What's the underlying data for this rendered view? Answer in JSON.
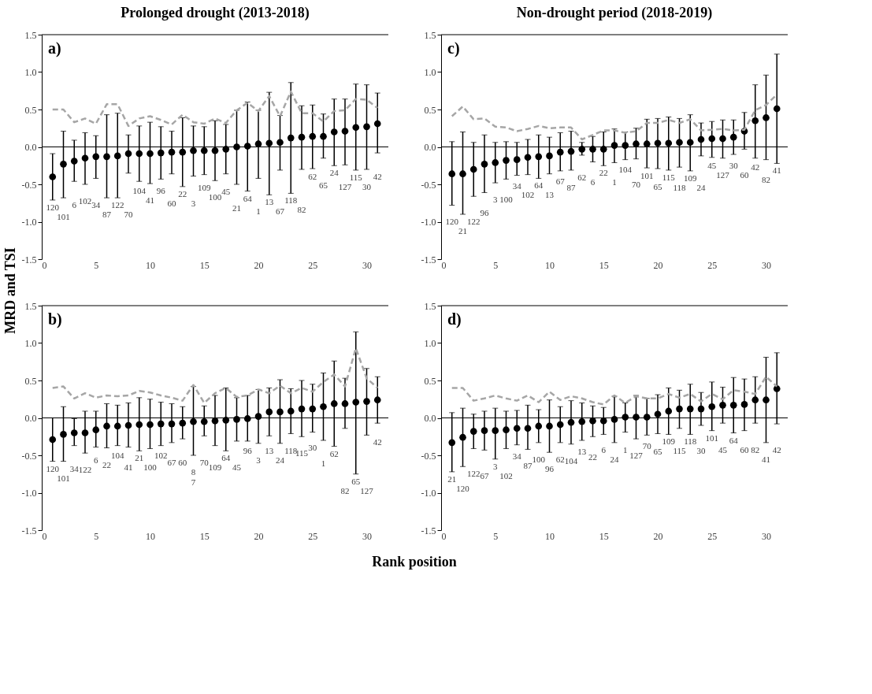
{
  "chart_data": [
    {
      "type": "scatter",
      "title": "Prolonged drought (2013-2018)",
      "ylabel": "MRD and TSI",
      "xlim": [
        0,
        32
      ],
      "xticks": [
        0,
        5,
        10,
        15,
        20,
        25,
        30
      ],
      "ylim": [
        -1.5,
        1.5
      ],
      "yticks": [
        {
          "value": -1.5,
          "label": "-1.5"
        },
        {
          "value": -1,
          "label": "-1.0"
        },
        {
          "value": -0.5,
          "label": "-0.5"
        },
        {
          "value": 0,
          "label": "0.0"
        },
        {
          "value": 0.5,
          "label": "0.5"
        },
        {
          "value": 1,
          "label": "1.0"
        },
        {
          "value": 1.5,
          "label": "1.5"
        }
      ],
      "grid": false,
      "x": [
        1,
        2,
        3,
        4,
        5,
        6,
        7,
        8,
        9,
        10,
        11,
        12,
        13,
        14,
        15,
        16,
        17,
        18,
        19,
        20,
        21,
        22,
        23,
        24,
        25,
        26,
        27,
        28,
        29,
        30,
        31
      ],
      "series": [
        {
          "color": "#000000",
          "marker": "circle",
          "values": [
            -0.4,
            -0.23,
            -0.19,
            -0.15,
            -0.13,
            -0.13,
            -0.12,
            -0.09,
            -0.09,
            -0.09,
            -0.08,
            -0.07,
            -0.07,
            -0.05,
            -0.05,
            -0.05,
            -0.03,
            0.0,
            0.01,
            0.04,
            0.05,
            0.06,
            0.12,
            0.13,
            0.14,
            0.14,
            0.2,
            0.21,
            0.26,
            0.27,
            0.31
          ],
          "errors": [
            [
              -0.71,
              -0.09
            ],
            [
              -0.68,
              0.21
            ],
            [
              -0.46,
              0.09
            ],
            [
              -0.5,
              0.19
            ],
            [
              -0.42,
              0.15
            ],
            [
              -0.68,
              0.43
            ],
            [
              -0.68,
              0.45
            ],
            [
              -0.35,
              0.16
            ],
            [
              -0.46,
              0.28
            ],
            [
              -0.49,
              0.33
            ],
            [
              -0.43,
              0.27
            ],
            [
              -0.36,
              0.21
            ],
            [
              -0.53,
              0.39
            ],
            [
              -0.39,
              0.28
            ],
            [
              -0.37,
              0.27
            ],
            [
              -0.45,
              0.35
            ],
            [
              -0.36,
              0.3
            ],
            [
              -0.5,
              0.49
            ],
            [
              -0.59,
              0.6
            ],
            [
              -0.42,
              0.49
            ],
            [
              -0.64,
              0.73
            ],
            [
              -0.31,
              0.42
            ],
            [
              -0.62,
              0.86
            ],
            [
              -0.3,
              0.55
            ],
            [
              -0.29,
              0.56
            ],
            [
              -0.15,
              0.44
            ],
            [
              -0.25,
              0.64
            ],
            [
              -0.24,
              0.64
            ],
            [
              -0.31,
              0.84
            ],
            [
              -0.3,
              0.83
            ],
            [
              -0.08,
              0.72
            ]
          ]
        },
        {
          "type": "line",
          "color": "#a6a6a6",
          "line_style": "dashed",
          "marker": "none",
          "values": [
            0.5,
            0.5,
            0.33,
            0.38,
            0.31,
            0.57,
            0.57,
            0.28,
            0.38,
            0.41,
            0.36,
            0.3,
            0.43,
            0.33,
            0.31,
            0.38,
            0.32,
            0.49,
            0.59,
            0.48,
            0.68,
            0.41,
            0.74,
            0.45,
            0.45,
            0.34,
            0.48,
            0.49,
            0.64,
            0.63,
            0.52
          ]
        }
      ],
      "ref_lines": [
        {
          "axis": "y",
          "value": 0,
          "color": "#000000"
        }
      ],
      "annotations": [
        "a)",
        "120",
        "101",
        "6",
        "102",
        "34",
        "87",
        "122",
        "70",
        "104",
        "41",
        "96",
        "60",
        "22",
        "3",
        "109",
        "100",
        "45",
        "21",
        "64",
        "1",
        "13",
        "67",
        "118",
        "82",
        "62",
        "65",
        "24",
        "127",
        "115",
        "30",
        "42"
      ]
    },
    {
      "type": "scatter",
      "title": "Non-drought period (2018-2019)",
      "xlim": [
        0,
        32
      ],
      "xticks": [
        0,
        5,
        10,
        15,
        20,
        25,
        30
      ],
      "ylim": [
        -1.5,
        1.5
      ],
      "yticks": [
        {
          "value": -1.5,
          "label": "-1.5"
        },
        {
          "value": -1,
          "label": "-1.0"
        },
        {
          "value": -0.5,
          "label": "-0.5"
        },
        {
          "value": 0,
          "label": "0.0"
        },
        {
          "value": 0.5,
          "label": "0.5"
        },
        {
          "value": 1,
          "label": "1.0"
        },
        {
          "value": 1.5,
          "label": "1.5"
        }
      ],
      "grid": false,
      "x": [
        1,
        2,
        3,
        4,
        5,
        6,
        7,
        8,
        9,
        10,
        11,
        12,
        13,
        14,
        15,
        16,
        17,
        18,
        19,
        20,
        21,
        22,
        23,
        24,
        25,
        26,
        27,
        28,
        29,
        30,
        31
      ],
      "series": [
        {
          "color": "#000000",
          "marker": "circle",
          "values": [
            -0.36,
            -0.36,
            -0.3,
            -0.23,
            -0.21,
            -0.18,
            -0.17,
            -0.14,
            -0.13,
            -0.12,
            -0.07,
            -0.06,
            -0.03,
            -0.03,
            -0.03,
            0.02,
            0.02,
            0.04,
            0.04,
            0.05,
            0.05,
            0.06,
            0.06,
            0.1,
            0.11,
            0.11,
            0.13,
            0.21,
            0.35,
            0.39,
            0.51
          ],
          "errors": [
            [
              -0.78,
              0.07
            ],
            [
              -0.9,
              0.2
            ],
            [
              -0.66,
              0.06
            ],
            [
              -0.61,
              0.16
            ],
            [
              -0.48,
              0.06
            ],
            [
              -0.43,
              0.07
            ],
            [
              -0.38,
              0.06
            ],
            [
              -0.37,
              0.1
            ],
            [
              -0.42,
              0.16
            ],
            [
              -0.36,
              0.13
            ],
            [
              -0.32,
              0.19
            ],
            [
              -0.31,
              0.21
            ],
            [
              -0.11,
              0.06
            ],
            [
              -0.2,
              0.14
            ],
            [
              -0.25,
              0.2
            ],
            [
              -0.21,
              0.24
            ],
            [
              -0.17,
              0.2
            ],
            [
              -0.16,
              0.25
            ],
            [
              -0.28,
              0.37
            ],
            [
              -0.29,
              0.38
            ],
            [
              -0.31,
              0.4
            ],
            [
              -0.27,
              0.38
            ],
            [
              -0.32,
              0.43
            ],
            [
              -0.12,
              0.32
            ],
            [
              -0.14,
              0.34
            ],
            [
              -0.15,
              0.36
            ],
            [
              -0.1,
              0.36
            ],
            [
              -0.03,
              0.46
            ],
            [
              -0.15,
              0.83
            ],
            [
              -0.17,
              0.96
            ],
            [
              -0.22,
              1.24
            ]
          ]
        },
        {
          "type": "line",
          "color": "#a6a6a6",
          "line_style": "dashed",
          "marker": "none",
          "values": [
            0.41,
            0.54,
            0.37,
            0.38,
            0.27,
            0.26,
            0.21,
            0.24,
            0.28,
            0.25,
            0.26,
            0.26,
            0.1,
            0.16,
            0.22,
            0.22,
            0.19,
            0.21,
            0.32,
            0.32,
            0.36,
            0.32,
            0.37,
            0.22,
            0.23,
            0.24,
            0.22,
            0.23,
            0.49,
            0.56,
            0.7
          ]
        }
      ],
      "ref_lines": [
        {
          "axis": "y",
          "value": 0,
          "color": "#000000"
        }
      ],
      "annotations": [
        "c)",
        "120",
        "21",
        "122",
        "96",
        "3",
        "100",
        "34",
        "102",
        "64",
        "13",
        "67",
        "87",
        "62",
        "6",
        "22",
        "1",
        "104",
        "70",
        "101",
        "65",
        "115",
        "118",
        "109",
        "24",
        "45",
        "127",
        "30",
        "60",
        "42",
        "82",
        "41"
      ]
    },
    {
      "type": "scatter",
      "xlabel": "Rank position",
      "xlim": [
        0,
        32
      ],
      "xticks": [
        0,
        5,
        10,
        15,
        20,
        25,
        30
      ],
      "ylim": [
        -1.5,
        1.5
      ],
      "yticks": [
        {
          "value": -1.5,
          "label": "-1.5"
        },
        {
          "value": -1,
          "label": "-1.0"
        },
        {
          "value": -0.5,
          "label": "-0.5"
        },
        {
          "value": 0,
          "label": "0.0"
        },
        {
          "value": 0.5,
          "label": "0.5"
        },
        {
          "value": 1,
          "label": "1.0"
        },
        {
          "value": 1.5,
          "label": "1.5"
        }
      ],
      "grid": false,
      "x": [
        1,
        2,
        3,
        4,
        5,
        6,
        7,
        8,
        9,
        10,
        11,
        12,
        13,
        14,
        15,
        16,
        17,
        18,
        19,
        20,
        21,
        22,
        23,
        24,
        25,
        26,
        27,
        28,
        29,
        30,
        31
      ],
      "series": [
        {
          "color": "#000000",
          "marker": "circle",
          "values": [
            -0.29,
            -0.22,
            -0.2,
            -0.2,
            -0.16,
            -0.11,
            -0.11,
            -0.1,
            -0.09,
            -0.09,
            -0.08,
            -0.08,
            -0.07,
            -0.05,
            -0.05,
            -0.04,
            -0.03,
            -0.02,
            -0.01,
            0.02,
            0.08,
            0.08,
            0.09,
            0.12,
            0.12,
            0.15,
            0.19,
            0.19,
            0.21,
            0.22,
            0.24
          ],
          "errors": [
            [
              -0.58,
              0.0
            ],
            [
              -0.58,
              0.15
            ],
            [
              -0.37,
              -0.01
            ],
            [
              -0.47,
              0.09
            ],
            [
              -0.39,
              0.09
            ],
            [
              -0.4,
              0.19
            ],
            [
              -0.37,
              0.17
            ],
            [
              -0.39,
              0.2
            ],
            [
              -0.44,
              0.27
            ],
            [
              -0.41,
              0.25
            ],
            [
              -0.37,
              0.21
            ],
            [
              -0.33,
              0.19
            ],
            [
              -0.28,
              0.15
            ],
            [
              -0.5,
              0.42
            ],
            [
              -0.24,
              0.16
            ],
            [
              -0.37,
              0.3
            ],
            [
              -0.44,
              0.4
            ],
            [
              -0.31,
              0.27
            ],
            [
              -0.31,
              0.3
            ],
            [
              -0.34,
              0.38
            ],
            [
              -0.24,
              0.4
            ],
            [
              -0.34,
              0.51
            ],
            [
              -0.21,
              0.39
            ],
            [
              -0.25,
              0.5
            ],
            [
              -0.19,
              0.45
            ],
            [
              -0.3,
              0.6
            ],
            [
              -0.38,
              0.76
            ],
            [
              -0.14,
              0.53
            ],
            [
              -0.75,
              1.15
            ],
            [
              -0.23,
              0.66
            ],
            [
              -0.07,
              0.55
            ]
          ]
        },
        {
          "type": "line",
          "color": "#a6a6a6",
          "line_style": "dashed",
          "marker": "none",
          "values": [
            0.4,
            0.42,
            0.26,
            0.33,
            0.27,
            0.3,
            0.29,
            0.3,
            0.36,
            0.34,
            0.3,
            0.27,
            0.23,
            0.44,
            0.2,
            0.33,
            0.4,
            0.28,
            0.3,
            0.38,
            0.33,
            0.43,
            0.33,
            0.4,
            0.35,
            0.48,
            0.58,
            0.42,
            0.93,
            0.53,
            0.4
          ]
        }
      ],
      "ref_lines": [
        {
          "axis": "y",
          "value": 0,
          "color": "#000000"
        }
      ],
      "annotations": [
        "b)",
        "120",
        "101",
        "34",
        "122",
        "6",
        "22",
        "104",
        "41",
        "21",
        "100",
        "102",
        "67",
        "60",
        "8\n7",
        "70",
        "109",
        "64",
        "45",
        "96",
        "3",
        "13",
        "24",
        "118",
        "115",
        "30",
        "1",
        "62",
        "82",
        "65",
        "127",
        "42"
      ]
    },
    {
      "type": "scatter",
      "xlim": [
        0,
        32
      ],
      "xticks": [
        0,
        5,
        10,
        15,
        20,
        25,
        30
      ],
      "ylim": [
        -1.5,
        1.5
      ],
      "yticks": [
        {
          "value": -1.5,
          "label": "-1.5"
        },
        {
          "value": -1,
          "label": "-1.0"
        },
        {
          "value": -0.5,
          "label": "-0.5"
        },
        {
          "value": 0,
          "label": "0.0"
        },
        {
          "value": 0.5,
          "label": "0.5"
        },
        {
          "value": 1,
          "label": "1.0"
        },
        {
          "value": 1.5,
          "label": "1.5"
        }
      ],
      "grid": false,
      "x": [
        1,
        2,
        3,
        4,
        5,
        6,
        7,
        8,
        9,
        10,
        11,
        12,
        13,
        14,
        15,
        16,
        17,
        18,
        19,
        20,
        21,
        22,
        23,
        24,
        25,
        26,
        27,
        28,
        29,
        30,
        31
      ],
      "series": [
        {
          "color": "#000000",
          "marker": "circle",
          "values": [
            -0.33,
            -0.26,
            -0.18,
            -0.17,
            -0.17,
            -0.16,
            -0.14,
            -0.14,
            -0.11,
            -0.11,
            -0.09,
            -0.06,
            -0.05,
            -0.04,
            -0.04,
            -0.02,
            0.01,
            0.01,
            0.01,
            0.05,
            0.09,
            0.12,
            0.12,
            0.12,
            0.15,
            0.17,
            0.17,
            0.18,
            0.24,
            0.24,
            0.39
          ],
          "errors": [
            [
              -0.72,
              0.07
            ],
            [
              -0.65,
              0.13
            ],
            [
              -0.41,
              0.05
            ],
            [
              -0.43,
              0.09
            ],
            [
              -0.55,
              0.13
            ],
            [
              -0.41,
              0.09
            ],
            [
              -0.36,
              0.1
            ],
            [
              -0.42,
              0.17
            ],
            [
              -0.33,
              0.11
            ],
            [
              -0.46,
              0.24
            ],
            [
              -0.33,
              0.15
            ],
            [
              -0.35,
              0.23
            ],
            [
              -0.3,
              0.2
            ],
            [
              -0.25,
              0.16
            ],
            [
              -0.22,
              0.14
            ],
            [
              -0.33,
              0.29
            ],
            [
              -0.19,
              0.2
            ],
            [
              -0.28,
              0.3
            ],
            [
              -0.23,
              0.26
            ],
            [
              -0.21,
              0.31
            ],
            [
              -0.22,
              0.4
            ],
            [
              -0.14,
              0.37
            ],
            [
              -0.22,
              0.45
            ],
            [
              -0.1,
              0.34
            ],
            [
              -0.17,
              0.48
            ],
            [
              -0.07,
              0.41
            ],
            [
              -0.2,
              0.54
            ],
            [
              -0.17,
              0.52
            ],
            [
              -0.07,
              0.55
            ],
            [
              -0.33,
              0.81
            ],
            [
              -0.08,
              0.87
            ]
          ]
        },
        {
          "type": "line",
          "color": "#a6a6a6",
          "line_style": "dashed",
          "marker": "none",
          "values": [
            0.4,
            0.4,
            0.23,
            0.26,
            0.3,
            0.26,
            0.23,
            0.3,
            0.21,
            0.35,
            0.24,
            0.29,
            0.26,
            0.21,
            0.18,
            0.3,
            0.2,
            0.29,
            0.26,
            0.26,
            0.32,
            0.27,
            0.32,
            0.22,
            0.32,
            0.25,
            0.37,
            0.35,
            0.32,
            0.55,
            0.42
          ]
        }
      ],
      "ref_lines": [
        {
          "axis": "y",
          "value": 0,
          "color": "#000000"
        }
      ],
      "annotations": [
        "d)",
        "21",
        "120",
        "122",
        "67",
        "3",
        "102",
        "34",
        "87",
        "100",
        "96",
        "62",
        "104",
        "13",
        "22",
        "6",
        "24",
        "1",
        "127",
        "70",
        "65",
        "109",
        "115",
        "118",
        "30",
        "101",
        "45",
        "64",
        "60",
        "82",
        "41",
        "42"
      ]
    }
  ]
}
